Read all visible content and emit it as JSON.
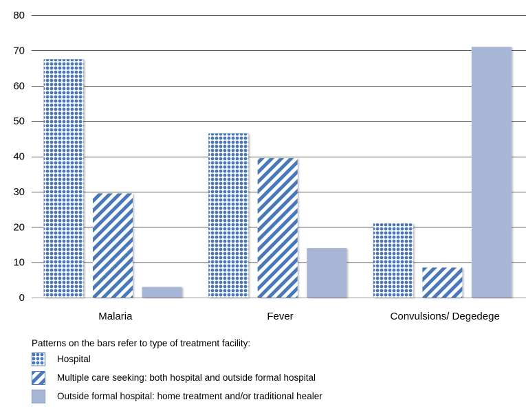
{
  "chart_data": {
    "type": "bar",
    "title": "",
    "xlabel": "",
    "ylabel": "",
    "ylim": [
      0,
      80
    ],
    "yticks": [
      0,
      10,
      20,
      30,
      40,
      50,
      60,
      70,
      80
    ],
    "grid": true,
    "categories": [
      "Malaria",
      "Fever",
      "Convulsions/ Degedege"
    ],
    "series": [
      {
        "name": "Hospital",
        "pattern": "dots",
        "values": [
          67.5,
          46.5,
          21
        ]
      },
      {
        "name": "Multiple care seeking: both hospital and outside formal hospital",
        "pattern": "diagonal-stripes",
        "values": [
          29.5,
          39.5,
          8.5
        ]
      },
      {
        "name": "Outside formal hospital: home treatment and/or traditional healer",
        "pattern": "solid",
        "values": [
          3,
          14,
          71
        ]
      }
    ],
    "colors": {
      "bar_blue": "#4a78b8",
      "bar_light": "#a7b6d6",
      "grid": "#5c5c5c",
      "axis": "#999999"
    }
  },
  "legend": {
    "title": "Patterns on the bars refer to type of treatment facility:",
    "items": [
      {
        "label": "Hospital",
        "pattern": "dots"
      },
      {
        "label": "Multiple care seeking: both hospital and outside formal hospital",
        "pattern": "diagonal-stripes"
      },
      {
        "label": "Outside formal hospital: home treatment and/or traditional healer",
        "pattern": "solid"
      }
    ]
  }
}
